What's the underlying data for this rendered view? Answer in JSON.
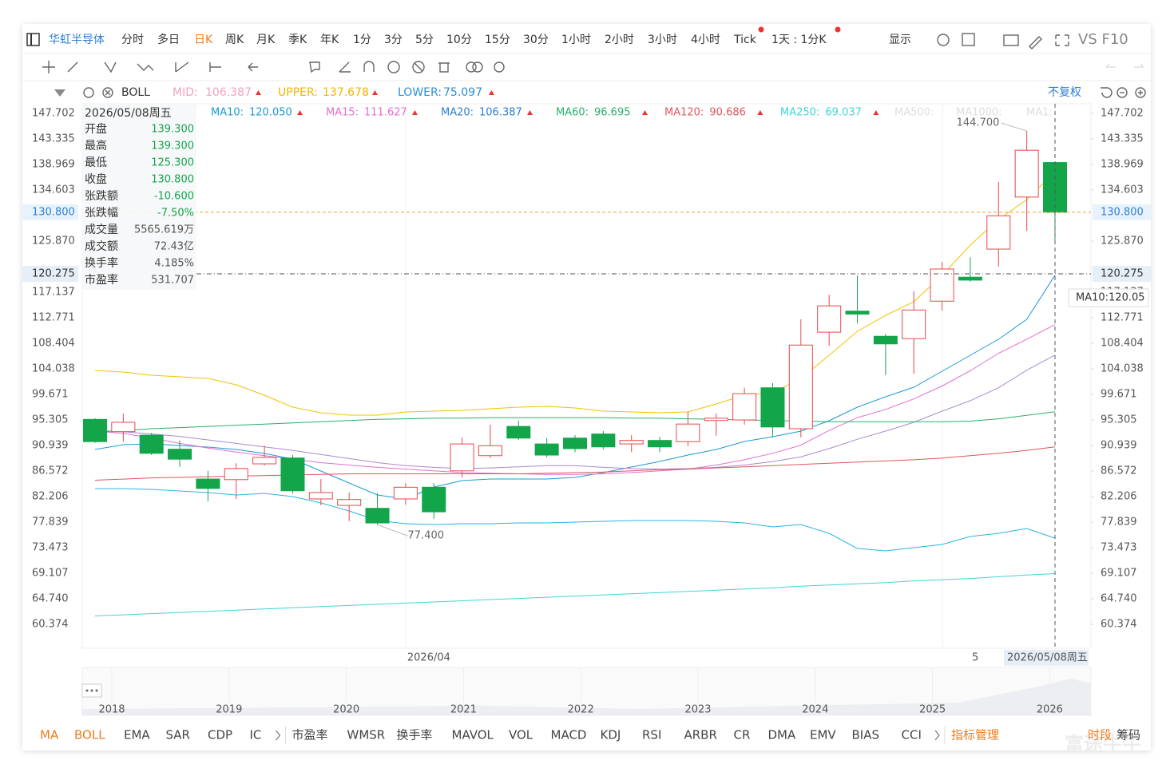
{
  "toolbar": {
    "stock": "华虹半导体",
    "periods": [
      "分时",
      "多日",
      "日K",
      "周K",
      "月K",
      "季K",
      "年K",
      "1分",
      "3分",
      "5分",
      "10分",
      "15分",
      "30分",
      "1小时",
      "2小时",
      "3小时",
      "4小时",
      "Tick",
      "1天 : 1分K"
    ],
    "active_period": "日K",
    "display": "显示",
    "vs": "VS F10"
  },
  "boll_bar": {
    "name": "BOLL",
    "items": [
      {
        "label": "MID:",
        "value": "106.387",
        "color": "#f2a3bd"
      },
      {
        "label": "UPPER:",
        "value": "137.678",
        "color": "#f2b400"
      },
      {
        "label": "LOWER:",
        "value": "75.097",
        "color": "#2a8fd6"
      }
    ]
  },
  "adjust": "不复权",
  "info_panel": {
    "date": "2026/05/08周五",
    "rows": [
      {
        "label": "开盘",
        "value": "139.300",
        "color": "#12a54a"
      },
      {
        "label": "最高",
        "value": "139.300",
        "color": "#12a54a"
      },
      {
        "label": "最低",
        "value": "125.300",
        "color": "#12a54a"
      },
      {
        "label": "收盘",
        "value": "130.800",
        "color": "#12a54a"
      },
      {
        "label": "张跌额",
        "value": "-10.600",
        "color": "#12a54a"
      },
      {
        "label": "张跌幅",
        "value": "-7.50%",
        "color": "#12a54a"
      },
      {
        "label": "成交量",
        "value": "5565.619万",
        "color": "#555555"
      },
      {
        "label": "成交额",
        "value": "72.43亿",
        "color": "#555555"
      },
      {
        "label": "换手率",
        "value": "4.185%",
        "color": "#555555"
      },
      {
        "label": "市盈率",
        "value": "531.707",
        "color": "#555555"
      }
    ]
  },
  "faded_legend": [
    "MA500:",
    "MA1000:",
    "MA1:"
  ],
  "crosshair_tag": "MA10:120.05",
  "navigator": {
    "labels": [
      "2018",
      "2019",
      "2020",
      "2021",
      "2022",
      "2023",
      "2024",
      "2025",
      "2026"
    ]
  },
  "indicators": {
    "left": [
      "MA",
      "BOLL",
      "EMA",
      "SAR",
      "CDP",
      "IC"
    ],
    "active": [
      "MA",
      "BOLL"
    ],
    "right": [
      "市盈率",
      "WMSR",
      "换手率",
      "MAVOL",
      "VOL",
      "MACD",
      "KDJ",
      "RSI",
      "ARBR",
      "CR",
      "DMA",
      "EMV",
      "BIAS",
      "CCI"
    ],
    "manage": "指标管理",
    "tabs": [
      "时段",
      "筹码"
    ]
  },
  "watermark": "富途牛牛",
  "chart_data": {
    "type": "candlestick",
    "categories": [
      null,
      null,
      null,
      null,
      null,
      null,
      null,
      null,
      null,
      null,
      null,
      "2026/04",
      null,
      null,
      null,
      null,
      null,
      null,
      null,
      null,
      null,
      null,
      null,
      null,
      null,
      null,
      null,
      null,
      null,
      null,
      null,
      "5",
      null,
      null,
      "2026/05/08周五"
    ],
    "open": [
      95.4,
      93.3,
      92.7,
      90.3,
      85.2,
      85.1,
      87.8,
      88.8,
      81.8,
      80.7,
      80.2,
      81.8,
      83.8,
      86.6,
      89.2,
      94.2,
      91.2,
      92.2,
      92.9,
      91.2,
      91.8,
      91.6,
      95.2,
      95.3,
      100.8,
      93.8,
      110.3,
      113.9,
      109.6,
      109.2,
      115.6,
      119.7,
      124.5,
      133.4,
      139.3
    ],
    "high": [
      95.6,
      96.4,
      93.1,
      91.8,
      86.6,
      87.9,
      90.9,
      89.3,
      85.2,
      82.9,
      82.8,
      84.5,
      84.5,
      92.3,
      94.5,
      95.2,
      92.2,
      92.7,
      93.4,
      92.7,
      92.4,
      96.7,
      96.4,
      100.8,
      101.6,
      112.5,
      116.7,
      120.0,
      110.0,
      117.3,
      122.3,
      123.1,
      136.0,
      144.7,
      139.3
    ],
    "low": [
      91.4,
      91.6,
      89.3,
      87.3,
      81.4,
      81.8,
      87.5,
      82.7,
      80.7,
      78.0,
      77.4,
      80.8,
      78.4,
      85.5,
      88.8,
      91.9,
      88.9,
      89.8,
      90.3,
      89.8,
      89.8,
      90.9,
      92.6,
      94.5,
      92.3,
      92.3,
      108.0,
      111.8,
      103.0,
      103.2,
      114.0,
      118.9,
      121.5,
      127.6,
      125.3
    ],
    "close": [
      91.6,
      94.9,
      89.6,
      88.6,
      83.6,
      87.0,
      88.9,
      83.2,
      82.9,
      81.7,
      77.7,
      83.8,
      79.6,
      91.2,
      90.9,
      92.2,
      89.3,
      90.4,
      90.7,
      91.8,
      90.7,
      94.6,
      95.6,
      99.8,
      94.1,
      108.1,
      114.8,
      113.4,
      108.3,
      114.1,
      121.1,
      119.2,
      130.2,
      141.4,
      130.8
    ],
    "up_color": "#e8474c",
    "down_color": "#12a54a",
    "annotations": [
      {
        "value": 77.4,
        "label": "77.400"
      },
      {
        "value": 144.7,
        "label": "144.700"
      }
    ],
    "series": [
      {
        "name": "MA10:",
        "legend_value": "120.050",
        "color": "#1a9ad6",
        "values": [
          90.26,
          91.08,
          91.21,
          90.94,
          90.67,
          90.26,
          89.57,
          88.62,
          86.57,
          84.53,
          82.48,
          81.8,
          83.84,
          84.93,
          85.21,
          85.21,
          85.21,
          85.48,
          86.3,
          87.26,
          88.21,
          89.3,
          90.26,
          91.62,
          92.44,
          93.39,
          95.17,
          97.49,
          99.26,
          100.9,
          103.63,
          106.36,
          109.09,
          112.5,
          120.05
        ]
      },
      {
        "name": "MA15:",
        "legend_value": "111.627",
        "color": "#e36fd2",
        "values": [
          93.4,
          93.0,
          92.2,
          91.3,
          90.5,
          89.8,
          89.2,
          88.6,
          88.0,
          87.6,
          87.2,
          86.9,
          86.6,
          86.3,
          86.2,
          86.1,
          86.0,
          86.0,
          86.1,
          86.3,
          86.6,
          86.9,
          87.6,
          88.5,
          89.6,
          91.0,
          93.5,
          95.7,
          97.1,
          98.9,
          101.1,
          103.7,
          106.7,
          109.1,
          111.6
        ]
      },
      {
        "name": "MA20:",
        "legend_value": "106.387",
        "color": "#a98bd0",
        "text_color": "#2a7fd4",
        "values": [
          93.5,
          93.3,
          92.9,
          92.5,
          91.9,
          91.3,
          90.7,
          90.1,
          89.4,
          88.7,
          88.0,
          87.5,
          87.2,
          87.0,
          87.1,
          87.3,
          87.5,
          87.5,
          87.2,
          87.0,
          86.9,
          87.0,
          87.2,
          87.6,
          88.2,
          89.0,
          90.4,
          92.0,
          93.4,
          94.9,
          96.8,
          98.6,
          100.8,
          103.8,
          106.4
        ]
      },
      {
        "name": "MA60:",
        "legend_value": "96.695",
        "color": "#28b06a",
        "values": [
          93.2,
          93.5,
          93.8,
          94.0,
          94.2,
          94.4,
          94.6,
          94.8,
          95.0,
          95.2,
          95.4,
          95.5,
          95.6,
          95.6,
          95.7,
          95.7,
          95.7,
          95.7,
          95.7,
          95.6,
          95.6,
          95.5,
          95.4,
          95.3,
          95.2,
          95.1,
          95.0,
          95.0,
          95.0,
          95.0,
          95.0,
          95.1,
          95.5,
          96.1,
          96.7
        ]
      },
      {
        "name": "MA120:",
        "legend_value": "90.686",
        "color": "#e0555b",
        "values": [
          85.0,
          85.2,
          85.4,
          85.5,
          85.6,
          85.7,
          85.8,
          85.9,
          86.0,
          86.1,
          86.1,
          86.1,
          86.1,
          86.1,
          86.1,
          86.1,
          86.2,
          86.3,
          86.4,
          86.6,
          86.8,
          86.9,
          87.1,
          87.3,
          87.5,
          87.7,
          87.9,
          88.1,
          88.3,
          88.5,
          88.8,
          89.2,
          89.6,
          90.1,
          90.7
        ]
      },
      {
        "name": "MA250:",
        "legend_value": "69.037",
        "color": "#3dd6d6",
        "values": [
          61.8,
          62.0,
          62.2,
          62.4,
          62.6,
          62.8,
          63.0,
          63.2,
          63.4,
          63.6,
          63.8,
          64.0,
          64.2,
          64.4,
          64.6,
          64.8,
          65.0,
          65.2,
          65.4,
          65.6,
          65.8,
          66.0,
          66.2,
          66.4,
          66.6,
          66.9,
          67.1,
          67.3,
          67.5,
          67.8,
          68.0,
          68.2,
          68.5,
          68.8,
          69.04
        ]
      },
      {
        "boll": "UPPER",
        "color": "#f2c200",
        "values": [
          103.77,
          103.49,
          102.95,
          102.67,
          102.4,
          101.31,
          99.53,
          97.49,
          96.53,
          96.12,
          96.12,
          96.67,
          96.81,
          96.94,
          97.22,
          97.49,
          97.63,
          97.35,
          96.81,
          96.67,
          96.53,
          96.67,
          98.03,
          99.53,
          99.94,
          102.4,
          106.36,
          110.45,
          113.18,
          115.5,
          120.0,
          125.19,
          129.55,
          132.96,
          137.68
        ]
      },
      {
        "boll": "LOWER",
        "color": "#2ab4e0",
        "values": [
          83.57,
          83.57,
          83.43,
          83.16,
          82.89,
          82.48,
          82.75,
          82.2,
          81.11,
          79.75,
          78.11,
          77.57,
          77.43,
          77.57,
          77.57,
          77.7,
          77.7,
          77.84,
          77.98,
          78.11,
          78.11,
          78.11,
          77.98,
          77.7,
          77.02,
          77.43,
          75.93,
          73.34,
          72.93,
          73.47,
          74.02,
          75.38,
          75.93,
          76.75,
          75.1
        ]
      }
    ],
    "ylim": [
      60.374,
      147.702
    ],
    "yticks": [
      147.702,
      143.335,
      138.969,
      134.603,
      {
        "value": 125.87,
        "label": "125.870"
      },
      117.137,
      112.771,
      108.404,
      104.038,
      99.671,
      95.305,
      90.939,
      86.572,
      82.206,
      77.839,
      73.473,
      69.107,
      {
        "value": 64.74,
        "label": "64.740"
      },
      60.374
    ],
    "last_price": {
      "value": 130.8,
      "label": "130.800"
    },
    "crosshair_price": {
      "value": 120.275,
      "label": "120.275"
    },
    "grid": false
  }
}
